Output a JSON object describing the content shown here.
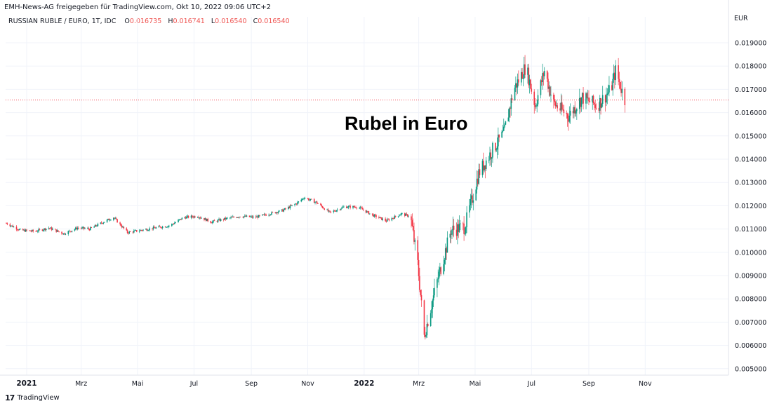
{
  "header": {
    "attribution": "EMH-News-AG freigegeben für TradingView.com, Okt 10, 2022 09:06 UTC+2",
    "symbol": "RUSSIAN RUBLE / EURO, 1T, IDC",
    "o_label": "O",
    "o_value": "0.016735",
    "h_label": "H",
    "h_value": "0.016741",
    "l_label": "L",
    "l_value": "0.016540",
    "c_label": "C",
    "c_value": "0.016540"
  },
  "footer": {
    "brand": "TradingView"
  },
  "colors": {
    "up": "#089981",
    "down": "#f23645",
    "grid": "#f0f3fa",
    "price_line": "#f23645"
  },
  "chart_data": {
    "type": "candlestick",
    "title": "Rubel in Euro",
    "y_unit": "EUR",
    "last_price": 0.01654,
    "ylim": [
      0.0048,
      0.0199
    ],
    "y_ticks": [
      0.019,
      0.018,
      0.017,
      0.016,
      0.015,
      0.014,
      0.013,
      0.012,
      0.011,
      0.01,
      0.009,
      0.008,
      0.007,
      0.006,
      0.005
    ],
    "y_tick_labels": [
      "0.019000",
      "0.018000",
      "0.017000",
      "0.016000",
      "0.015000",
      "0.014000",
      "0.013000",
      "0.012000",
      "0.011000",
      "0.010000",
      "0.009000",
      "0.008000",
      "0.007000",
      "0.006000",
      "0.005000"
    ],
    "x_ticks": [
      {
        "date": "2021-01-01",
        "label": "2021",
        "bold": true
      },
      {
        "date": "2021-03-01",
        "label": "Mrz",
        "bold": false
      },
      {
        "date": "2021-05-01",
        "label": "Mai",
        "bold": false
      },
      {
        "date": "2021-07-01",
        "label": "Jul",
        "bold": false
      },
      {
        "date": "2021-09-01",
        "label": "Sep",
        "bold": false
      },
      {
        "date": "2021-11-01",
        "label": "Nov",
        "bold": false
      },
      {
        "date": "2022-01-01",
        "label": "2022",
        "bold": true
      },
      {
        "date": "2022-03-01",
        "label": "Mrz",
        "bold": false
      },
      {
        "date": "2022-05-01",
        "label": "Mai",
        "bold": false
      },
      {
        "date": "2022-07-01",
        "label": "Jul",
        "bold": false
      },
      {
        "date": "2022-09-01",
        "label": "Sep",
        "bold": false
      },
      {
        "date": "2022-11-01",
        "label": "Nov",
        "bold": false
      }
    ],
    "xlim": [
      "2020-12-10",
      "2022-11-30"
    ],
    "series_close": [
      {
        "date": "2020-12-10",
        "close": 0.01125
      },
      {
        "date": "2020-12-25",
        "close": 0.01095
      },
      {
        "date": "2021-01-10",
        "close": 0.0109
      },
      {
        "date": "2021-01-25",
        "close": 0.01105
      },
      {
        "date": "2021-02-10",
        "close": 0.0108
      },
      {
        "date": "2021-02-25",
        "close": 0.01105
      },
      {
        "date": "2021-03-10",
        "close": 0.011
      },
      {
        "date": "2021-03-25",
        "close": 0.0113
      },
      {
        "date": "2021-04-05",
        "close": 0.0115
      },
      {
        "date": "2021-04-20",
        "close": 0.01085
      },
      {
        "date": "2021-05-05",
        "close": 0.01095
      },
      {
        "date": "2021-05-20",
        "close": 0.01105
      },
      {
        "date": "2021-06-05",
        "close": 0.01115
      },
      {
        "date": "2021-06-20",
        "close": 0.0115
      },
      {
        "date": "2021-07-05",
        "close": 0.01155
      },
      {
        "date": "2021-07-20",
        "close": 0.0113
      },
      {
        "date": "2021-08-05",
        "close": 0.01145
      },
      {
        "date": "2021-08-20",
        "close": 0.01155
      },
      {
        "date": "2021-09-05",
        "close": 0.0115
      },
      {
        "date": "2021-09-20",
        "close": 0.01165
      },
      {
        "date": "2021-10-05",
        "close": 0.0118
      },
      {
        "date": "2021-10-20",
        "close": 0.0121
      },
      {
        "date": "2021-10-28",
        "close": 0.01235
      },
      {
        "date": "2021-11-10",
        "close": 0.01215
      },
      {
        "date": "2021-11-25",
        "close": 0.0117
      },
      {
        "date": "2021-12-10",
        "close": 0.01195
      },
      {
        "date": "2021-12-25",
        "close": 0.01195
      },
      {
        "date": "2022-01-10",
        "close": 0.0116
      },
      {
        "date": "2022-01-25",
        "close": 0.01135
      },
      {
        "date": "2022-02-10",
        "close": 0.01165
      },
      {
        "date": "2022-02-20",
        "close": 0.01155
      },
      {
        "date": "2022-02-28",
        "close": 0.0095
      },
      {
        "date": "2022-03-07",
        "close": 0.0064
      },
      {
        "date": "2022-03-20",
        "close": 0.0086
      },
      {
        "date": "2022-04-05",
        "close": 0.01095
      },
      {
        "date": "2022-04-20",
        "close": 0.0111
      },
      {
        "date": "2022-05-05",
        "close": 0.0134
      },
      {
        "date": "2022-05-20",
        "close": 0.0144
      },
      {
        "date": "2022-06-01",
        "close": 0.0151
      },
      {
        "date": "2022-06-12",
        "close": 0.017
      },
      {
        "date": "2022-06-25",
        "close": 0.018
      },
      {
        "date": "2022-07-05",
        "close": 0.0163
      },
      {
        "date": "2022-07-15",
        "close": 0.0178
      },
      {
        "date": "2022-07-25",
        "close": 0.0164
      },
      {
        "date": "2022-08-10",
        "close": 0.01585
      },
      {
        "date": "2022-08-25",
        "close": 0.01665
      },
      {
        "date": "2022-09-10",
        "close": 0.0163
      },
      {
        "date": "2022-09-25",
        "close": 0.017
      },
      {
        "date": "2022-09-30",
        "close": 0.0178
      },
      {
        "date": "2022-10-10",
        "close": 0.01654
      }
    ]
  }
}
